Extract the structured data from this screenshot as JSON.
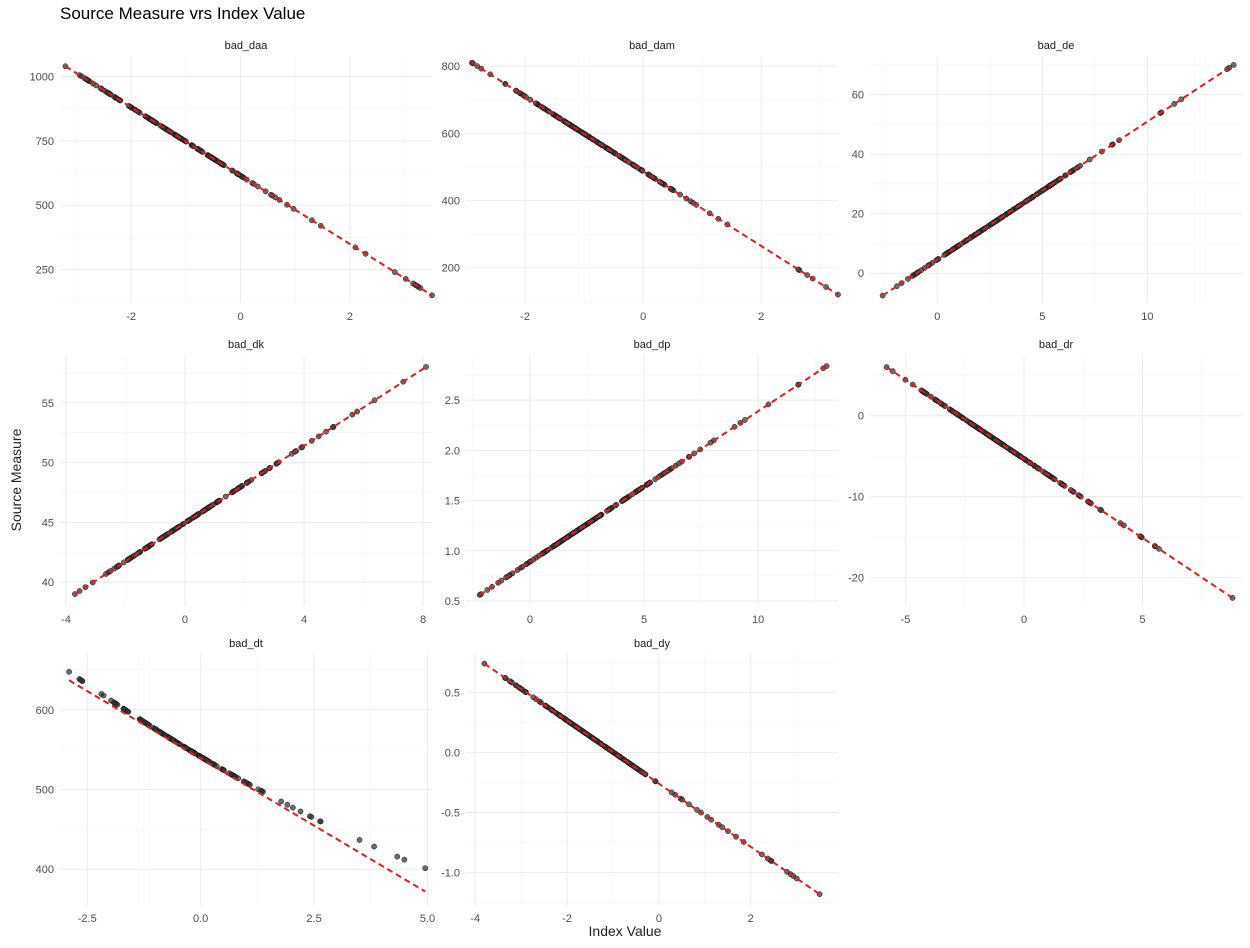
{
  "title": "Source Measure vrs Index Value",
  "xlabel": "Index Value",
  "ylabel": "Source Measure",
  "colors": {
    "points": "#333333",
    "fit_line": "#e41a1c",
    "grid": "#ebebeb"
  },
  "chart_data": {
    "type": "scatter",
    "facets": [
      {
        "name": "bad_daa",
        "xlim": [
          -3.3,
          3.5
        ],
        "ylim": [
          120,
          1080
        ],
        "xticks": [
          -2,
          0,
          2
        ],
        "xtick_labels": [
          "-2",
          "0",
          "2"
        ],
        "yticks": [
          250,
          500,
          750,
          1000
        ],
        "ytick_labels": [
          "250",
          "500",
          "750",
          "1000"
        ],
        "points_x_range": [
          -3.2,
          3.5
        ],
        "fit": [
          [
            -3.2,
            1040
          ],
          [
            3.5,
            150
          ]
        ],
        "curve": 0
      },
      {
        "name": "bad_dam",
        "xlim": [
          -3.0,
          3.3
        ],
        "ylim": [
          95,
          830
        ],
        "xticks": [
          -2,
          0,
          2
        ],
        "xtick_labels": [
          "-2",
          "0",
          "2"
        ],
        "yticks": [
          200,
          400,
          600,
          800
        ],
        "ytick_labels": [
          "200",
          "400",
          "600",
          "800"
        ],
        "points_x_range": [
          -2.9,
          3.3
        ],
        "fit": [
          [
            -2.9,
            810
          ],
          [
            3.3,
            120
          ]
        ],
        "curve": 0
      },
      {
        "name": "bad_de",
        "xlim": [
          -3.2,
          14.5
        ],
        "ylim": [
          -10,
          73
        ],
        "xticks": [
          0,
          5,
          10
        ],
        "xtick_labels": [
          "0",
          "5",
          "10"
        ],
        "yticks": [
          0,
          20,
          40,
          60
        ],
        "ytick_labels": [
          "0",
          "20",
          "40",
          "60"
        ],
        "points_x_range": [
          -2.6,
          14.1
        ],
        "fit": [
          [
            -2.6,
            -7.5
          ],
          [
            14.1,
            70
          ]
        ],
        "curve": 0
      },
      {
        "name": "bad_dk",
        "xlim": [
          -4.2,
          8.3
        ],
        "ylim": [
          38,
          59
        ],
        "xticks": [
          -4,
          0,
          4,
          8
        ],
        "xtick_labels": [
          "-4",
          "0",
          "4",
          "8"
        ],
        "yticks": [
          40,
          45,
          50,
          55
        ],
        "ytick_labels": [
          "40",
          "45",
          "50",
          "55"
        ],
        "points_x_range": [
          -3.7,
          8.1
        ],
        "fit": [
          [
            -3.7,
            39
          ],
          [
            8.1,
            58
          ]
        ],
        "curve": 0
      },
      {
        "name": "bad_dp",
        "xlim": [
          -2.8,
          13.5
        ],
        "ylim": [
          0.45,
          2.95
        ],
        "xticks": [
          0,
          5,
          10
        ],
        "xtick_labels": [
          "0",
          "5",
          "10"
        ],
        "yticks": [
          0.5,
          1.0,
          1.5,
          2.0,
          2.5
        ],
        "ytick_labels": [
          "0.5",
          "1.0",
          "1.5",
          "2.0",
          "2.5"
        ],
        "points_x_range": [
          -2.2,
          13.0
        ],
        "fit": [
          [
            -2.2,
            0.56
          ],
          [
            13.0,
            2.84
          ]
        ],
        "curve": 0
      },
      {
        "name": "bad_dr",
        "xlim": [
          -6.5,
          9.2
        ],
        "ylim": [
          -23.5,
          7.5
        ],
        "xticks": [
          -5,
          0,
          5
        ],
        "xtick_labels": [
          "-5",
          "0",
          "5"
        ],
        "yticks": [
          -20,
          -10,
          0
        ],
        "ytick_labels": [
          "-20",
          "-10",
          "0"
        ],
        "points_x_range": [
          -5.8,
          8.8
        ],
        "fit": [
          [
            -5.8,
            6.0
          ],
          [
            8.8,
            -22.5
          ]
        ],
        "curve": 0
      },
      {
        "name": "bad_dt",
        "xlim": [
          -3.1,
          5.1
        ],
        "ylim": [
          355,
          670
        ],
        "xticks": [
          -2.5,
          0.0,
          2.5,
          5.0
        ],
        "xtick_labels": [
          "-2.5",
          "0.0",
          "2.5",
          "5.0"
        ],
        "yticks": [
          400,
          500,
          600
        ],
        "ytick_labels": [
          "400",
          "500",
          "600"
        ],
        "points_x_range": [
          -2.9,
          4.95
        ],
        "fit": [
          [
            -2.9,
            637
          ],
          [
            4.95,
            372
          ]
        ],
        "curve": 1
      },
      {
        "name": "bad_dy",
        "xlim": [
          -4.2,
          3.9
        ],
        "ylim": [
          -1.27,
          0.82
        ],
        "xticks": [
          -4,
          -2,
          0,
          2
        ],
        "xtick_labels": [
          "-4",
          "-2",
          "0",
          "2"
        ],
        "yticks": [
          -1.0,
          -0.5,
          0.0,
          0.5
        ],
        "ytick_labels": [
          "-1.0",
          "-0.5",
          "0.0",
          "0.5"
        ],
        "points_x_range": [
          -3.8,
          3.5
        ],
        "fit": [
          [
            -3.8,
            0.74
          ],
          [
            3.5,
            -1.18
          ]
        ],
        "curve": 0
      }
    ]
  }
}
